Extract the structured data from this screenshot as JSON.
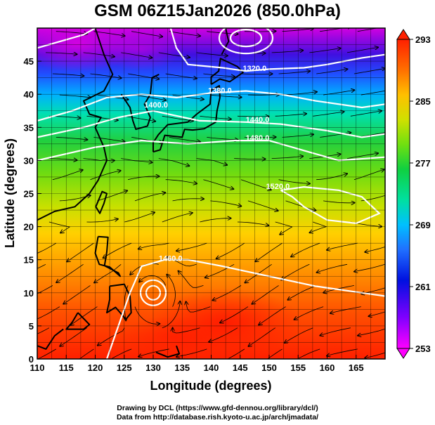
{
  "title": "GSM 06Z15Jan2026 (850.0hPa)",
  "xaxis": {
    "label": "Longitude (degrees)",
    "range": [
      110,
      170
    ],
    "ticks": [
      110,
      115,
      120,
      125,
      130,
      135,
      140,
      145,
      150,
      155,
      160,
      165
    ]
  },
  "yaxis": {
    "label": "Latitude  (degrees)",
    "range": [
      0,
      50
    ],
    "ticks": [
      0,
      5,
      10,
      15,
      20,
      25,
      30,
      35,
      40,
      45
    ]
  },
  "colorbar": {
    "min": 253,
    "max": 293,
    "labels": [
      293,
      285,
      277,
      269,
      261,
      253
    ],
    "colors": [
      "#ff00ff",
      "#8000ff",
      "#0000e0",
      "#3070ff",
      "#00c0ff",
      "#00e0a0",
      "#10d040",
      "#60e010",
      "#c0e000",
      "#ffd000",
      "#ff8000",
      "#ff2000"
    ]
  },
  "contour_labels": [
    {
      "text": "1320.0",
      "lon": 147.5,
      "lat": 43.5
    },
    {
      "text": "1380.0",
      "lon": 141.5,
      "lat": 40.2
    },
    {
      "text": "1400.0",
      "lon": 130.5,
      "lat": 38.0
    },
    {
      "text": "1440.0",
      "lon": 148.0,
      "lat": 35.8
    },
    {
      "text": "1480.0",
      "lon": 148.0,
      "lat": 33.0
    },
    {
      "text": "1520.0",
      "lon": 151.5,
      "lat": 25.7
    },
    {
      "text": "1460.0",
      "lon": 133.0,
      "lat": 14.8
    }
  ],
  "footer": {
    "line1": "Drawing by DCL (https://www.gfd-dennou.org/library/dcl/)",
    "line2": "Data from http://database.rish.kyoto-u.ac.jp/arch/jmadata/"
  }
}
